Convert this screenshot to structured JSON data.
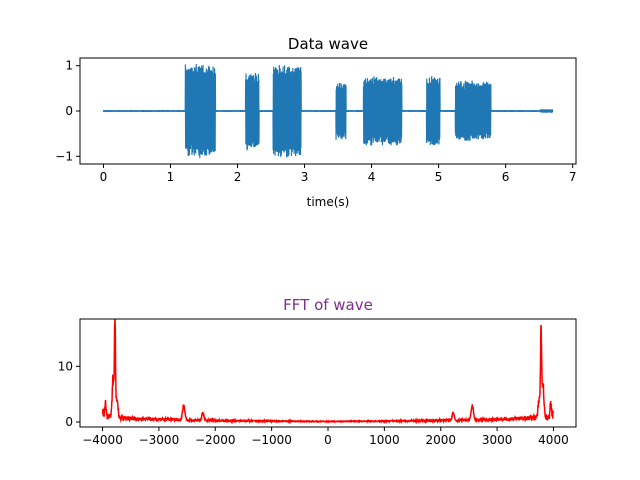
{
  "chart_data": [
    {
      "type": "line",
      "title": "Data wave",
      "title_color": "#000000",
      "xlabel": "time(s)",
      "ylabel": "",
      "xlim": [
        -0.35,
        7.05
      ],
      "ylim": [
        -1.17,
        1.17
      ],
      "xticks": [
        0,
        1,
        2,
        3,
        4,
        5,
        6,
        7
      ],
      "xtick_labels": [
        "0",
        "1",
        "2",
        "3",
        "4",
        "5",
        "6",
        "7"
      ],
      "yticks": [
        -1,
        0,
        1
      ],
      "ytick_labels": [
        "−1",
        "0",
        "1"
      ],
      "grid": false,
      "series": [
        {
          "color": "#1f77b4",
          "duration": 6.7,
          "baseline_noise": 0.02,
          "bursts": [
            {
              "start": 1.22,
              "end": 1.67,
              "amplitude": 1.05
            },
            {
              "start": 2.12,
              "end": 2.32,
              "amplitude": 0.88
            },
            {
              "start": 2.53,
              "end": 2.95,
              "amplitude": 1.05
            },
            {
              "start": 3.47,
              "end": 3.62,
              "amplitude": 0.65
            },
            {
              "start": 3.88,
              "end": 4.45,
              "amplitude": 0.78
            },
            {
              "start": 4.82,
              "end": 5.02,
              "amplitude": 0.78
            },
            {
              "start": 5.25,
              "end": 5.78,
              "amplitude": 0.68
            },
            {
              "start": 6.52,
              "end": 6.72,
              "amplitude": 0.04
            }
          ]
        }
      ]
    },
    {
      "type": "line",
      "title": "FFT of wave",
      "title_color": "#7d2e8e",
      "xlabel": "",
      "ylabel": "",
      "xlim": [
        -4400,
        4400
      ],
      "ylim": [
        -0.9,
        18.5
      ],
      "xticks": [
        -4000,
        -3000,
        -2000,
        -1000,
        0,
        1000,
        2000,
        3000,
        4000
      ],
      "xtick_labels": [
        "−4000",
        "−3000",
        "−2000",
        "−1000",
        "0",
        "1000",
        "2000",
        "3000",
        "4000"
      ],
      "yticks": [
        0,
        10
      ],
      "ytick_labels": [
        "0",
        "10"
      ],
      "grid": false,
      "series": [
        {
          "color": "#ff0000",
          "x_range": [
            -4000,
            4000
          ],
          "noise_floor": 0.45,
          "floor_profile": [
            [
              0,
              0.1
            ],
            [
              1000,
              0.15
            ],
            [
              1800,
              0.25
            ],
            [
              2500,
              0.35
            ],
            [
              3300,
              0.55
            ],
            [
              3900,
              0.9
            ],
            [
              4000,
              1.6
            ]
          ],
          "peaks": [
            {
              "x": 3780,
              "height": 17.6,
              "width": 12
            },
            {
              "x": 3810,
              "height": 8.0,
              "width": 25
            },
            {
              "x": 3750,
              "height": 4.0,
              "width": 30
            },
            {
              "x": 2560,
              "height": 3.0,
              "width": 30
            },
            {
              "x": 2220,
              "height": 1.6,
              "width": 25
            },
            {
              "x": 3950,
              "height": 2.5,
              "width": 15
            }
          ]
        }
      ]
    }
  ]
}
